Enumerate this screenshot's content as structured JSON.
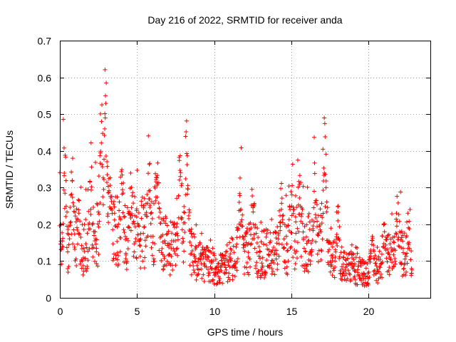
{
  "chart_data": {
    "type": "scatter",
    "title": "Day 216 of 2022, SRMTID for receiver anda",
    "xlabel": "GPS time / hours",
    "ylabel": "SRMTID / TECUs",
    "xlim": [
      0,
      24
    ],
    "ylim": [
      0,
      0.7
    ],
    "xticks": [
      0,
      5,
      10,
      15,
      20
    ],
    "xtick_labels": [
      "0",
      "5",
      "10",
      "15",
      "20"
    ],
    "yticks": [
      0,
      0.1,
      0.2,
      0.3,
      0.4,
      0.5,
      0.6,
      0.7
    ],
    "ytick_labels": [
      "0",
      "0.1",
      "0.2",
      "0.3",
      "0.4",
      "0.5",
      "0.6",
      "0.7"
    ],
    "grid": true,
    "marker": "+",
    "color": "#ff0000",
    "series": [
      {
        "name": "SRMTID",
        "x_start": 0,
        "x_end": 22.8,
        "x_step": 0.05,
        "baseline": [
          [
            0.0,
            0.16
          ],
          [
            0.5,
            0.14
          ],
          [
            1.0,
            0.15
          ],
          [
            1.5,
            0.13
          ],
          [
            2.0,
            0.17
          ],
          [
            2.5,
            0.18
          ],
          [
            3.0,
            0.2
          ],
          [
            3.5,
            0.19
          ],
          [
            4.0,
            0.17
          ],
          [
            4.5,
            0.16
          ],
          [
            5.0,
            0.17
          ],
          [
            5.5,
            0.18
          ],
          [
            6.0,
            0.17
          ],
          [
            6.5,
            0.15
          ],
          [
            7.0,
            0.14
          ],
          [
            7.5,
            0.13
          ],
          [
            8.0,
            0.13
          ],
          [
            8.5,
            0.12
          ],
          [
            9.0,
            0.1
          ],
          [
            9.5,
            0.09
          ],
          [
            10.0,
            0.08
          ],
          [
            10.5,
            0.08
          ],
          [
            11.0,
            0.1
          ],
          [
            11.5,
            0.12
          ],
          [
            12.0,
            0.13
          ],
          [
            12.5,
            0.13
          ],
          [
            13.0,
            0.12
          ],
          [
            13.5,
            0.12
          ],
          [
            14.0,
            0.12
          ],
          [
            14.5,
            0.13
          ],
          [
            15.0,
            0.14
          ],
          [
            15.5,
            0.15
          ],
          [
            16.0,
            0.15
          ],
          [
            16.5,
            0.15
          ],
          [
            17.0,
            0.16
          ],
          [
            17.5,
            0.13
          ],
          [
            18.0,
            0.1
          ],
          [
            18.5,
            0.09
          ],
          [
            19.0,
            0.08
          ],
          [
            19.5,
            0.07
          ],
          [
            20.0,
            0.06
          ],
          [
            20.5,
            0.08
          ],
          [
            21.0,
            0.1
          ],
          [
            21.5,
            0.12
          ],
          [
            22.0,
            0.12
          ],
          [
            22.5,
            0.11
          ],
          [
            22.8,
            0.1
          ]
        ],
        "peaks": [
          {
            "x": 0.3,
            "y": 0.38
          },
          {
            "x": 0.8,
            "y": 0.3
          },
          {
            "x": 1.2,
            "y": 0.24
          },
          {
            "x": 2.0,
            "y": 0.31
          },
          {
            "x": 2.7,
            "y": 0.52
          },
          {
            "x": 2.95,
            "y": 0.61
          },
          {
            "x": 3.2,
            "y": 0.36
          },
          {
            "x": 4.0,
            "y": 0.31
          },
          {
            "x": 4.6,
            "y": 0.3
          },
          {
            "x": 5.8,
            "y": 0.36
          },
          {
            "x": 6.3,
            "y": 0.44
          },
          {
            "x": 7.8,
            "y": 0.39
          },
          {
            "x": 8.2,
            "y": 0.44
          },
          {
            "x": 8.3,
            "y": 0.34
          },
          {
            "x": 11.7,
            "y": 0.3
          },
          {
            "x": 12.5,
            "y": 0.28
          },
          {
            "x": 14.3,
            "y": 0.28
          },
          {
            "x": 15.0,
            "y": 0.27
          },
          {
            "x": 15.5,
            "y": 0.35
          },
          {
            "x": 16.5,
            "y": 0.3
          },
          {
            "x": 17.15,
            "y": 0.48
          },
          {
            "x": 17.2,
            "y": 0.4
          },
          {
            "x": 18.0,
            "y": 0.2
          },
          {
            "x": 20.2,
            "y": 0.17
          },
          {
            "x": 21.0,
            "y": 0.16
          },
          {
            "x": 21.9,
            "y": 0.24
          },
          {
            "x": 22.6,
            "y": 0.2
          }
        ]
      }
    ]
  }
}
